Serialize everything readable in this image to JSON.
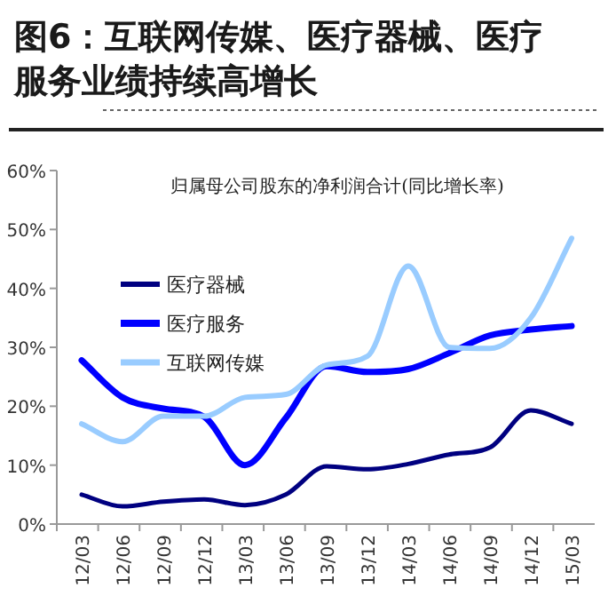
{
  "chart_data": {
    "type": "line",
    "title": "图6：互联网传媒、医疗器械、医疗服务业绩持续高增长",
    "subtitle": "归属母公司股东的净利润合计(同比增长率)",
    "categories": [
      "12/03",
      "12/06",
      "12/09",
      "12/12",
      "13/03",
      "13/06",
      "13/09",
      "13/12",
      "14/03",
      "14/06",
      "14/09",
      "14/12",
      "15/03"
    ],
    "series": [
      {
        "name": "医疗器械",
        "color": "#000080",
        "values": [
          5,
          3,
          3.8,
          4.2,
          3.2,
          5,
          9.8,
          9.3,
          10.2,
          11.8,
          13,
          19.3,
          17
        ]
      },
      {
        "name": "医疗服务",
        "color": "#0000ff",
        "values": [
          27.8,
          21.5,
          19.6,
          18.2,
          10,
          18,
          26.8,
          25.8,
          26.3,
          29,
          32,
          33,
          33.6
        ]
      },
      {
        "name": "互联网传媒",
        "color": "#99ccff",
        "values": [
          17,
          14,
          18.3,
          18.3,
          21.5,
          22,
          27,
          28.5,
          43.8,
          30,
          29.8,
          35,
          48.5
        ]
      }
    ],
    "ylim": [
      0,
      60
    ],
    "yticks": [
      {
        "value": 0,
        "label": "0%"
      },
      {
        "value": 10,
        "label": "10%"
      },
      {
        "value": 20,
        "label": "20%"
      },
      {
        "value": 30,
        "label": "30%"
      },
      {
        "value": 40,
        "label": "40%"
      },
      {
        "value": 50,
        "label": "50%"
      },
      {
        "value": 60,
        "label": "60%"
      }
    ],
    "legend": "top left",
    "grid": false,
    "marker": "none",
    "line_style": "solid"
  }
}
